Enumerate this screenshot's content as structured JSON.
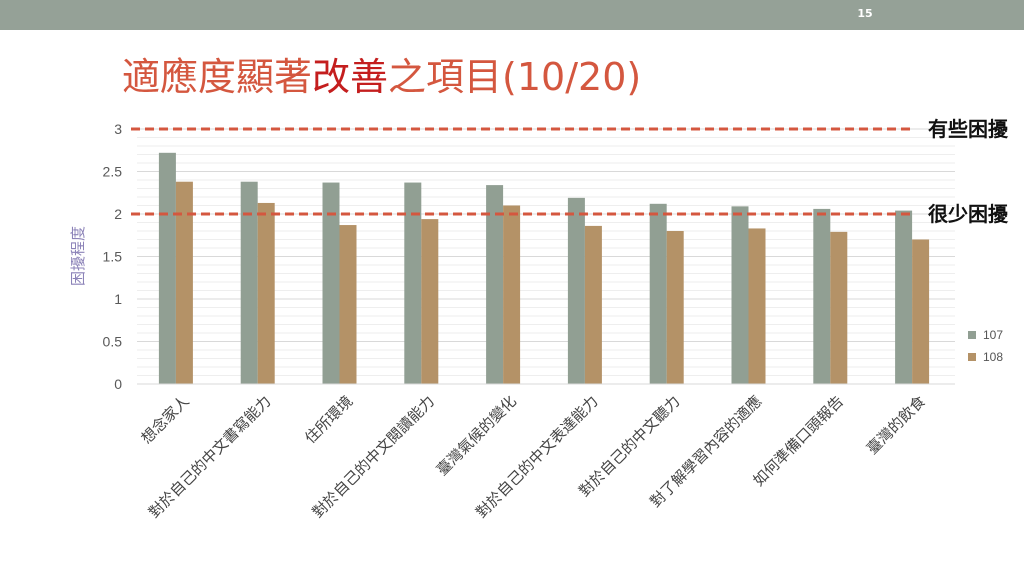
{
  "slide": {
    "page_number": "15",
    "title_part1": "適應度顯著",
    "title_highlight": "改善",
    "title_part2": "之項目(10/20)"
  },
  "colors": {
    "top_bar": "#95a197",
    "title": "#d4573f",
    "title_highlight": "#c41e1e",
    "series_107": "#919f93",
    "series_108": "#b49267",
    "reference_line": "#d4573f",
    "ylabel": "#8c83b8"
  },
  "chart_data": {
    "type": "bar",
    "title": "",
    "xlabel": "",
    "ylabel": "困擾程度",
    "ylim": [
      0,
      3
    ],
    "yticks": [
      "0",
      "0.5",
      "1",
      "1.5",
      "2",
      "2.5",
      "3"
    ],
    "grid": true,
    "legend_position": "right",
    "categories": [
      "想念家人",
      "對於自己的中文書寫能力",
      "住所環境",
      "對於自己的中文閱讀能力",
      "臺灣氣候的變化",
      "對於自己的中文表達能力",
      "對於自己的中文聽力",
      "對了解學習內容的適應",
      "如何準備口頭報告",
      "臺灣的飲食"
    ],
    "series": [
      {
        "name": "107",
        "values": [
          2.72,
          2.38,
          2.37,
          2.37,
          2.34,
          2.19,
          2.12,
          2.09,
          2.06,
          2.04
        ]
      },
      {
        "name": "108",
        "values": [
          2.38,
          2.13,
          1.87,
          1.94,
          2.1,
          1.86,
          1.8,
          1.83,
          1.79,
          1.7
        ]
      }
    ],
    "reference_lines": [
      {
        "value": 3,
        "label": "有些困擾"
      },
      {
        "value": 2,
        "label": "很少困擾"
      }
    ]
  }
}
